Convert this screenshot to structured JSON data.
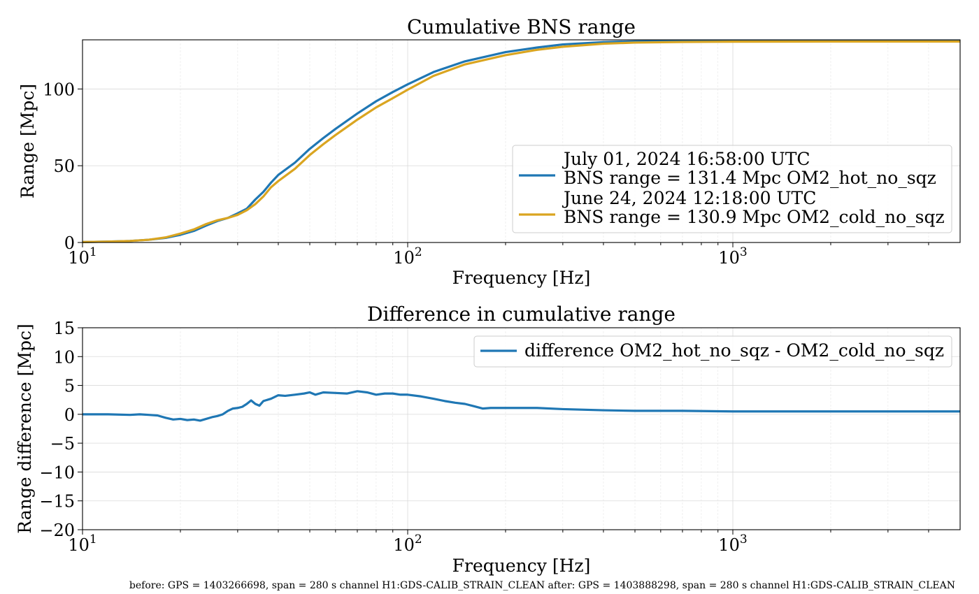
{
  "chart_data": [
    {
      "type": "line",
      "title": "Cumulative BNS range",
      "xlabel": "Frequency [Hz]",
      "ylabel": "Range [Mpc]",
      "xscale": "log",
      "xlim": [
        10,
        5000
      ],
      "ylim": [
        0,
        132
      ],
      "yticks": [
        0,
        50,
        100
      ],
      "xticks": [
        10,
        100,
        1000
      ],
      "xtick_labels": [
        {
          "base": "10",
          "exp": "1"
        },
        {
          "base": "10",
          "exp": "2"
        },
        {
          "base": "10",
          "exp": "3"
        }
      ],
      "grid": true,
      "legend_position": "lower-right",
      "series": [
        {
          "name_line1": "July 01, 2024 16:58:00 UTC",
          "name_line2": "BNS range = 131.4 Mpc OM2_hot_no_sqz",
          "color": "#1f77b4",
          "x": [
            10,
            12,
            14,
            16,
            18,
            20,
            22,
            24,
            26,
            28,
            30,
            32,
            34,
            36,
            38,
            40,
            45,
            50,
            55,
            60,
            70,
            80,
            90,
            100,
            120,
            150,
            200,
            250,
            300,
            400,
            500,
            700,
            1000,
            2000,
            5000
          ],
          "y": [
            0.3,
            0.6,
            1.0,
            1.8,
            3.0,
            5.0,
            7.5,
            11,
            14,
            16,
            19,
            22,
            28,
            33,
            39,
            44,
            52,
            61,
            68,
            74,
            84,
            92,
            98,
            103,
            111,
            118,
            124,
            127,
            129,
            130.5,
            131.0,
            131.2,
            131.3,
            131.4,
            131.4
          ]
        },
        {
          "name_line1": "June 24, 2024 12:18:00 UTC",
          "name_line2": "BNS range = 130.9 Mpc OM2_cold_no_sqz",
          "color": "#daa520",
          "x": [
            10,
            12,
            14,
            16,
            18,
            20,
            22,
            24,
            26,
            28,
            30,
            32,
            34,
            36,
            38,
            40,
            45,
            50,
            55,
            60,
            70,
            80,
            90,
            100,
            120,
            150,
            200,
            250,
            300,
            400,
            500,
            700,
            1000,
            2000,
            5000
          ],
          "y": [
            0.3,
            0.6,
            1.0,
            1.8,
            3.3,
            5.8,
            8.5,
            12,
            14.5,
            16,
            18,
            21,
            25,
            30,
            36,
            40,
            48,
            57,
            64,
            70,
            80,
            88,
            94,
            99.5,
            108.5,
            116,
            122,
            125.5,
            127.5,
            129.5,
            130.2,
            130.6,
            130.8,
            130.9,
            130.9
          ]
        }
      ]
    },
    {
      "type": "line",
      "title": "Difference in cumulative range",
      "xlabel": "Frequency [Hz]",
      "ylabel": "Range difference [Mpc]",
      "xscale": "log",
      "xlim": [
        10,
        5000
      ],
      "ylim": [
        -20,
        15
      ],
      "yticks": [
        -20,
        -15,
        -10,
        -5,
        0,
        5,
        10,
        15
      ],
      "ytick_labels": [
        "−20",
        "−15",
        "−10",
        "−5",
        "0",
        "5",
        "10",
        "15"
      ],
      "xticks": [
        10,
        100,
        1000
      ],
      "xtick_labels": [
        {
          "base": "10",
          "exp": "1"
        },
        {
          "base": "10",
          "exp": "2"
        },
        {
          "base": "10",
          "exp": "3"
        }
      ],
      "grid": true,
      "legend_position": "upper-right",
      "series": [
        {
          "name": "difference OM2_hot_no_sqz - OM2_cold_no_sqz",
          "color": "#1f77b4",
          "x": [
            10,
            12,
            14,
            15,
            16,
            17,
            18,
            19,
            20,
            21,
            22,
            23,
            24,
            25,
            26,
            27,
            28,
            29,
            30,
            31,
            32,
            33,
            34,
            35,
            36,
            38,
            40,
            42,
            45,
            48,
            50,
            52,
            55,
            60,
            65,
            70,
            75,
            80,
            85,
            90,
            95,
            100,
            110,
            120,
            130,
            140,
            150,
            160,
            170,
            180,
            190,
            200,
            250,
            300,
            400,
            500,
            700,
            1000,
            2000,
            5000
          ],
          "y": [
            0.0,
            0.0,
            -0.1,
            0.0,
            -0.1,
            -0.2,
            -0.6,
            -0.9,
            -0.8,
            -1.0,
            -0.9,
            -1.1,
            -0.8,
            -0.5,
            -0.3,
            0.0,
            0.6,
            1.0,
            1.1,
            1.3,
            1.8,
            2.4,
            1.8,
            1.5,
            2.3,
            2.7,
            3.3,
            3.2,
            3.4,
            3.6,
            3.8,
            3.4,
            3.8,
            3.7,
            3.6,
            4.0,
            3.8,
            3.4,
            3.6,
            3.6,
            3.4,
            3.4,
            3.1,
            2.7,
            2.3,
            2.0,
            1.8,
            1.4,
            1.0,
            1.1,
            1.1,
            1.1,
            1.1,
            0.9,
            0.7,
            0.6,
            0.6,
            0.5,
            0.5,
            0.5
          ]
        }
      ]
    }
  ],
  "footer_text": "before: GPS = 1403266698, span = 280 s channel H1:GDS-CALIB_STRAIN_CLEAN after: GPS = 1403888298, span = 280 s channel H1:GDS-CALIB_STRAIN_CLEAN"
}
